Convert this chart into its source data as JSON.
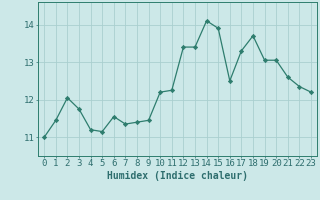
{
  "x": [
    0,
    1,
    2,
    3,
    4,
    5,
    6,
    7,
    8,
    9,
    10,
    11,
    12,
    13,
    14,
    15,
    16,
    17,
    18,
    19,
    20,
    21,
    22,
    23
  ],
  "y": [
    11.0,
    11.45,
    12.05,
    11.75,
    11.2,
    11.15,
    11.55,
    11.35,
    11.4,
    11.45,
    12.2,
    12.25,
    13.4,
    13.4,
    14.1,
    13.9,
    12.5,
    13.3,
    13.7,
    13.05,
    13.05,
    12.6,
    12.35,
    12.2
  ],
  "line_color": "#2e7d6e",
  "marker": "D",
  "marker_size": 2.2,
  "bg_color": "#cce8e8",
  "grid_color": "#aacfcf",
  "xlabel": "Humidex (Indice chaleur)",
  "ylim": [
    10.5,
    14.6
  ],
  "xlim": [
    -0.5,
    23.5
  ],
  "yticks": [
    11,
    12,
    13,
    14
  ],
  "xticks": [
    0,
    1,
    2,
    3,
    4,
    5,
    6,
    7,
    8,
    9,
    10,
    11,
    12,
    13,
    14,
    15,
    16,
    17,
    18,
    19,
    20,
    21,
    22,
    23
  ],
  "font_color": "#2e6e6e",
  "xlabel_fontsize": 7,
  "tick_fontsize": 6.5,
  "line_width": 0.9
}
